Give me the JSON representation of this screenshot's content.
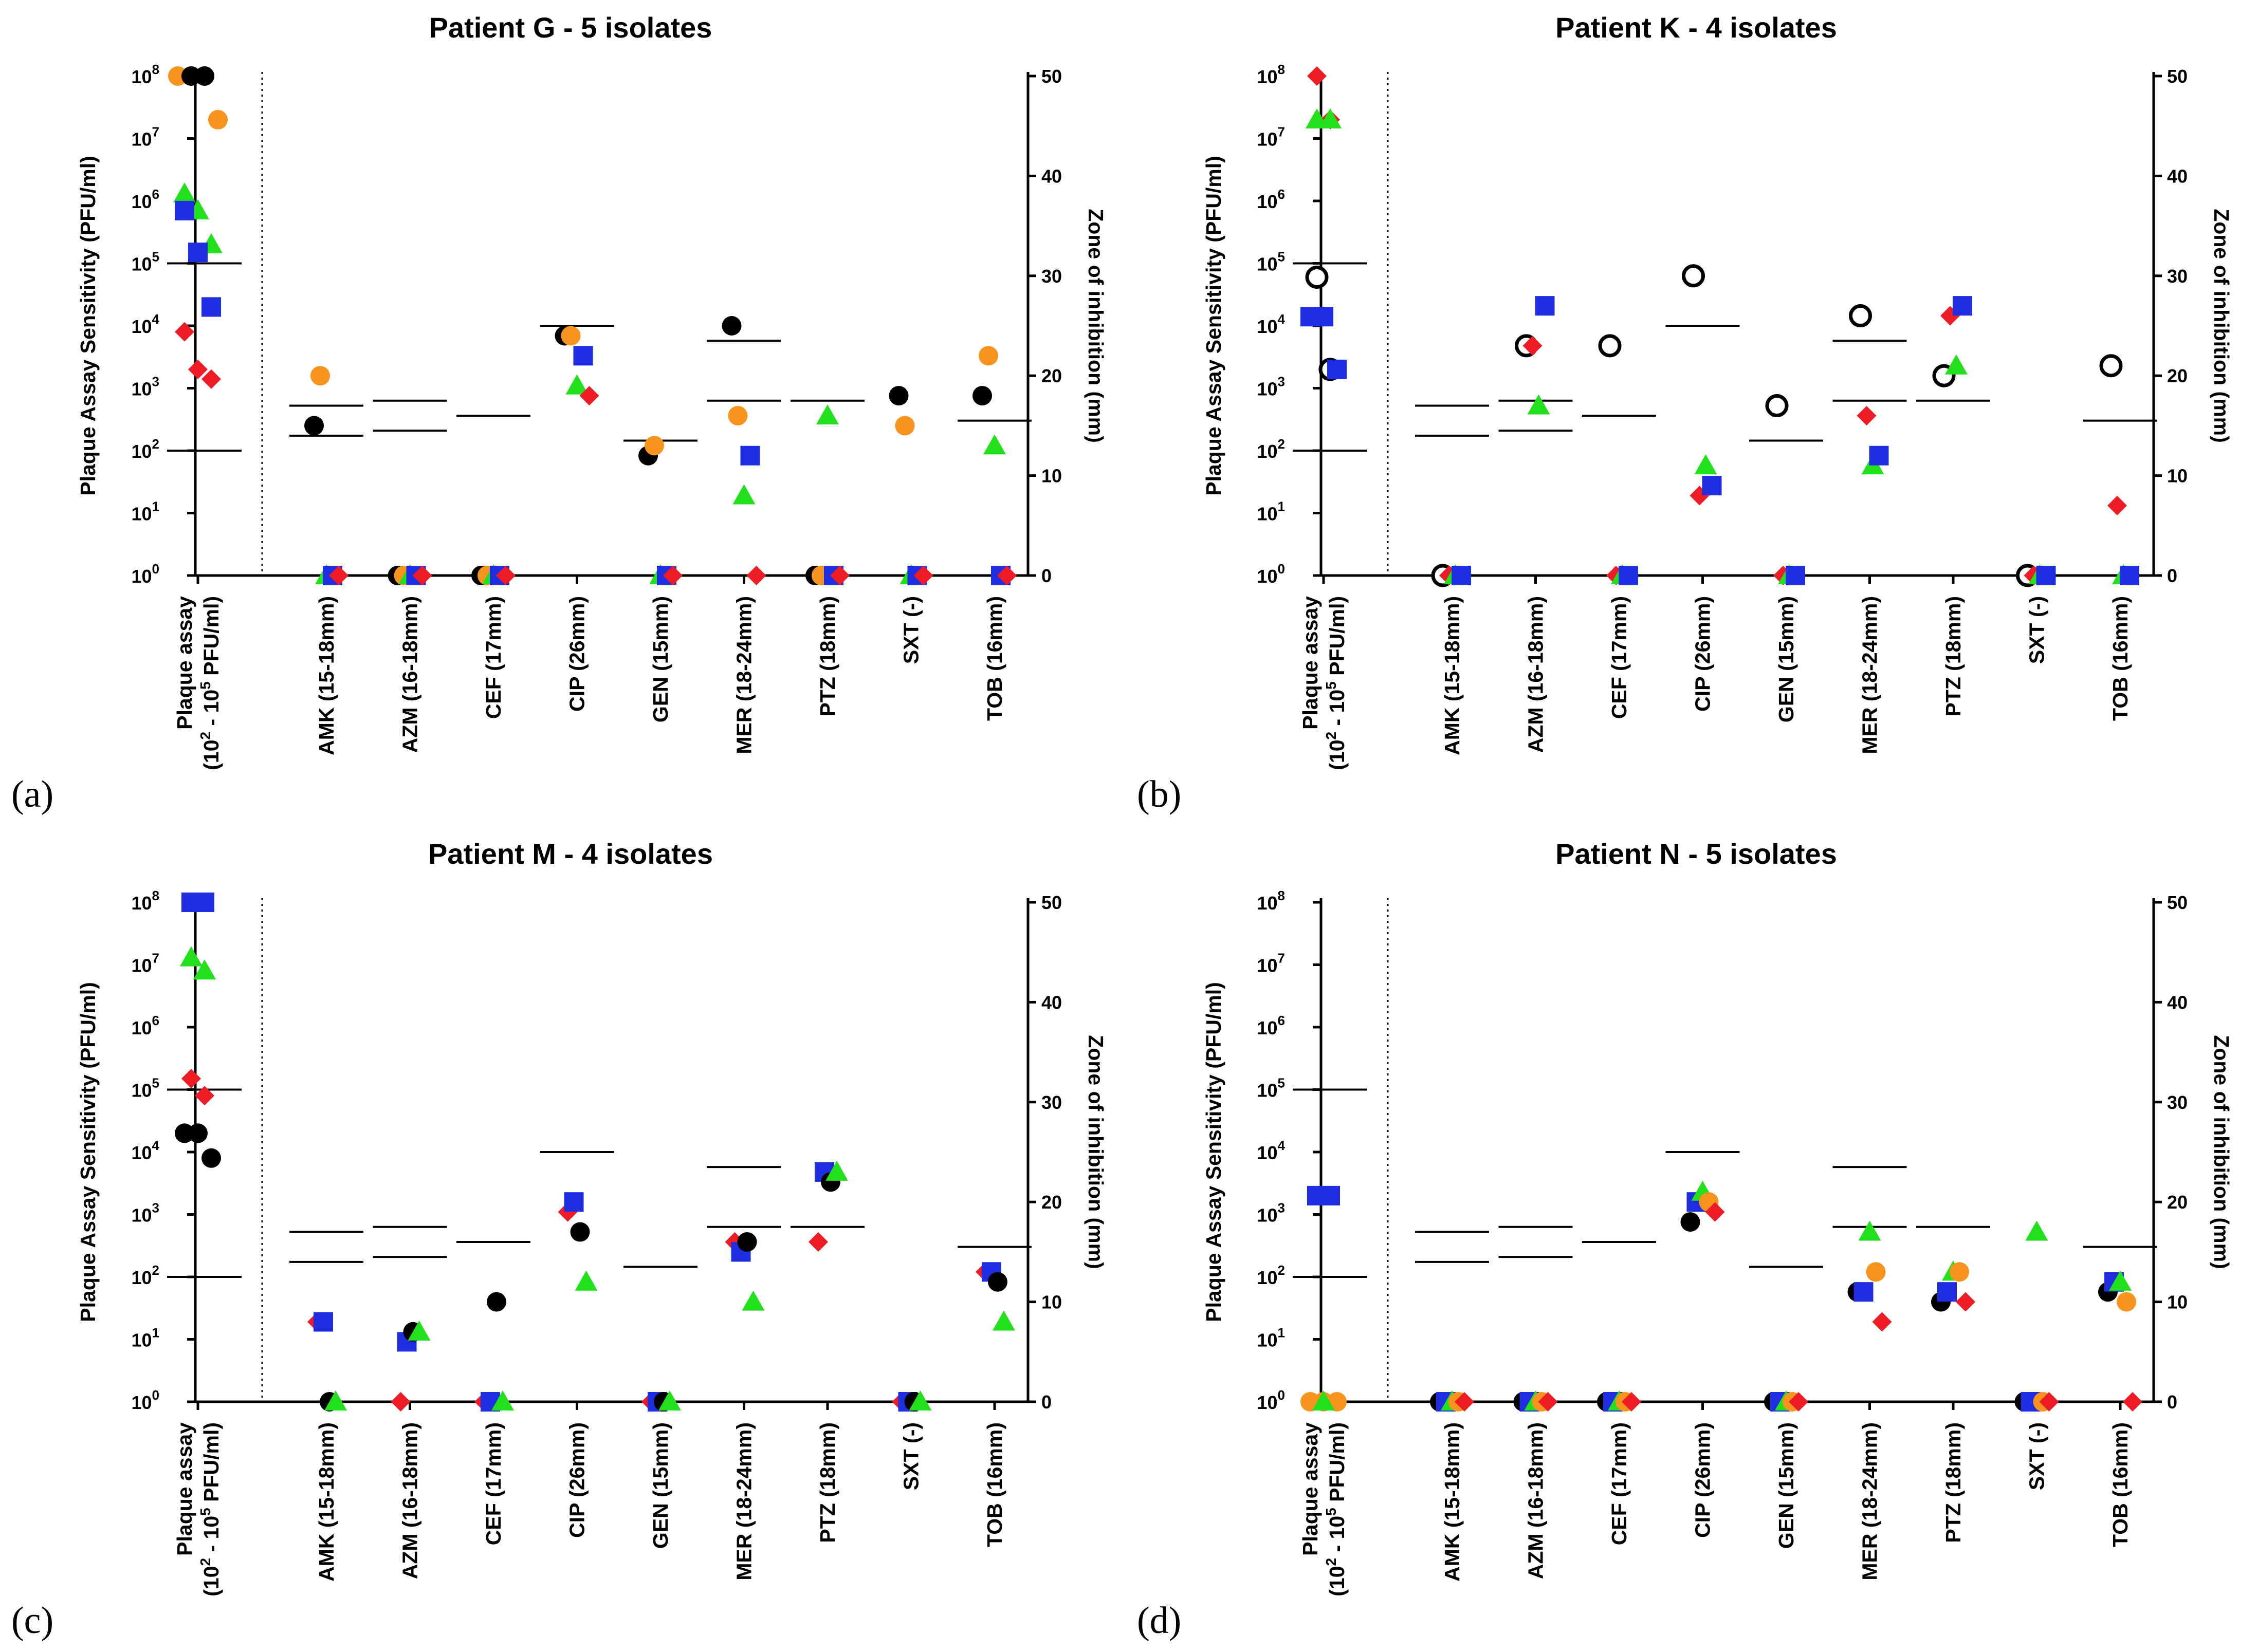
{
  "chart_data": [
    {
      "id": "a",
      "type": "scatter",
      "title": "Patient G - 5 isolates",
      "panel_letter": "(a)",
      "ylabel": "Plaque Assay Sensitivity (PFU/ml)",
      "y2label": "Zone of inhibition (mm)",
      "ylim": [
        1,
        100000000
      ],
      "y_scale": "log10",
      "y2lim": [
        0,
        50
      ],
      "y_ticks": [
        "10",
        "10",
        "10",
        "10",
        "10",
        "10",
        "10",
        "10",
        "10"
      ],
      "y_tick_exps": [
        "0",
        "1",
        "2",
        "3",
        "4",
        "5",
        "6",
        "7",
        "8"
      ],
      "y2_ticks": [
        "0",
        "10",
        "20",
        "30",
        "40",
        "50"
      ],
      "plaque_label": "Plaque assay",
      "plaque_range_label": "(10",
      "plaque_range_exp1": "2",
      "plaque_range_mid": " - 10",
      "plaque_range_exp2": "5",
      "plaque_range_unit": " PFU/ml)",
      "categories": [
        "AMK (15-18mm)",
        "AZM (16-18mm)",
        "CEF (17mm)",
        "CIP (26mm)",
        "GEN (15mm)",
        "MER (18-24mm)",
        "PTZ (18mm)",
        "SXT (-)",
        "TOB (16mm)"
      ],
      "plaque_lines": [
        100,
        100000
      ],
      "breakpoints_mm": [
        [
          14,
          17
        ],
        [
          14.5,
          17.5
        ],
        [
          16
        ],
        [
          25
        ],
        [
          13.5
        ],
        [
          17.5,
          23.5
        ],
        [
          17.5
        ],
        [],
        [
          15.5
        ]
      ],
      "plaque_series": [
        {
          "name": "orange circle",
          "values": [
            100000000,
            100000000,
            100000000,
            20000000
          ]
        },
        {
          "name": "black circle",
          "values": [
            100000000,
            100000000
          ]
        },
        {
          "name": "green triangle",
          "values": [
            1300000,
            700000,
            200000
          ]
        },
        {
          "name": "blue square",
          "values": [
            700000,
            150000,
            20000
          ]
        },
        {
          "name": "red diamond",
          "values": [
            8000,
            2000,
            1400
          ]
        }
      ],
      "zone_series": [
        {
          "name": "black circle",
          "values": [
            15,
            0,
            0,
            24,
            12,
            25,
            0,
            18,
            18
          ]
        },
        {
          "name": "orange circle",
          "values": [
            20,
            0,
            0,
            24,
            13,
            16,
            0,
            15,
            22
          ]
        },
        {
          "name": "green triangle",
          "values": [
            0,
            0,
            0,
            19,
            0,
            8,
            16,
            0,
            13
          ]
        },
        {
          "name": "blue square",
          "values": [
            0,
            0,
            0,
            22,
            0,
            12,
            0,
            0,
            0
          ]
        },
        {
          "name": "red diamond",
          "values": [
            0,
            0,
            0,
            18,
            0,
            0,
            0,
            0,
            0
          ]
        }
      ]
    },
    {
      "id": "b",
      "type": "scatter",
      "title": "Patient K - 4 isolates",
      "panel_letter": "(b)",
      "ylabel": "Plaque Assay Sensitivity (PFU/ml)",
      "y2label": "Zone of inhibition (mm)",
      "ylim": [
        1,
        100000000
      ],
      "y_scale": "log10",
      "y2lim": [
        0,
        50
      ],
      "y_ticks": [
        "10",
        "10",
        "10",
        "10",
        "10",
        "10",
        "10",
        "10",
        "10"
      ],
      "y_tick_exps": [
        "0",
        "1",
        "2",
        "3",
        "4",
        "5",
        "6",
        "7",
        "8"
      ],
      "y2_ticks": [
        "0",
        "10",
        "20",
        "30",
        "40",
        "50"
      ],
      "plaque_label": "Plaque assay",
      "plaque_range_label": "(10",
      "plaque_range_exp1": "2",
      "plaque_range_mid": " - 10",
      "plaque_range_exp2": "5",
      "plaque_range_unit": " PFU/ml)",
      "categories": [
        "AMK (15-18mm)",
        "AZM (16-18mm)",
        "CEF (17mm)",
        "CIP (26mm)",
        "GEN (15mm)",
        "MER (18-24mm)",
        "PTZ (18mm)",
        "SXT (-)",
        "TOB (16mm)"
      ],
      "plaque_lines": [
        100,
        100000
      ],
      "breakpoints_mm": [
        [
          14,
          17
        ],
        [
          14.5,
          17.5
        ],
        [
          16
        ],
        [
          25
        ],
        [
          13.5
        ],
        [
          17.5,
          23.5
        ],
        [
          17.5
        ],
        [],
        [
          15.5
        ]
      ],
      "plaque_series": [
        {
          "name": "red diamond",
          "values": [
            100000000,
            20000000
          ]
        },
        {
          "name": "green triangle",
          "values": [
            20000000,
            20000000
          ]
        },
        {
          "name": "open circle",
          "values": [
            60000,
            2000
          ]
        },
        {
          "name": "blue square",
          "values": [
            14000,
            14000,
            2000
          ]
        }
      ],
      "zone_series": [
        {
          "name": "open circle",
          "values": [
            0,
            23,
            23,
            30,
            17,
            26,
            20,
            0,
            21
          ]
        },
        {
          "name": "red diamond",
          "values": [
            0,
            23,
            0,
            8,
            0,
            16,
            26,
            0,
            7
          ]
        },
        {
          "name": "green triangle",
          "values": [
            0,
            17,
            0,
            11,
            0,
            11,
            21,
            0,
            0
          ]
        },
        {
          "name": "blue square",
          "values": [
            0,
            27,
            0,
            9,
            0,
            12,
            27,
            0,
            0
          ]
        }
      ]
    },
    {
      "id": "c",
      "type": "scatter",
      "title": "Patient M - 4 isolates",
      "panel_letter": "(c)",
      "ylabel": "Plaque Assay Sensitivity (PFU/ml)",
      "y2label": "Zone of inhibition (mm)",
      "ylim": [
        1,
        100000000
      ],
      "y_scale": "log10",
      "y2lim": [
        0,
        50
      ],
      "y_ticks": [
        "10",
        "10",
        "10",
        "10",
        "10",
        "10",
        "10",
        "10",
        "10"
      ],
      "y_tick_exps": [
        "0",
        "1",
        "2",
        "3",
        "4",
        "5",
        "6",
        "7",
        "8"
      ],
      "y2_ticks": [
        "0",
        "10",
        "20",
        "30",
        "40",
        "50"
      ],
      "plaque_label": "Plaque assay",
      "plaque_range_label": "(10",
      "plaque_range_exp1": "2",
      "plaque_range_mid": " - 10",
      "plaque_range_exp2": "5",
      "plaque_range_unit": " PFU/ml)",
      "categories": [
        "AMK (15-18mm)",
        "AZM (16-18mm)",
        "CEF (17mm)",
        "CIP (26mm)",
        "GEN (15mm)",
        "MER (18-24mm)",
        "PTZ (18mm)",
        "SXT (-)",
        "TOB (16mm)"
      ],
      "plaque_lines": [
        100,
        100000
      ],
      "breakpoints_mm": [
        [
          14,
          17
        ],
        [
          14.5,
          17.5
        ],
        [
          16
        ],
        [
          25
        ],
        [
          13.5
        ],
        [
          17.5,
          23.5
        ],
        [
          17.5
        ],
        [],
        [
          15.5
        ]
      ],
      "plaque_series": [
        {
          "name": "blue square",
          "values": [
            100000000,
            100000000
          ]
        },
        {
          "name": "green triangle",
          "values": [
            13000000,
            8000000
          ]
        },
        {
          "name": "red diamond",
          "values": [
            150000,
            80000
          ]
        },
        {
          "name": "black circle",
          "values": [
            20000,
            20000,
            8000
          ]
        }
      ],
      "zone_series": [
        {
          "name": "red diamond",
          "values": [
            8,
            0,
            0,
            19,
            0,
            16,
            16,
            0,
            13
          ]
        },
        {
          "name": "blue square",
          "values": [
            8,
            6,
            0,
            20,
            0,
            15,
            23,
            0,
            13
          ]
        },
        {
          "name": "black circle",
          "values": [
            0,
            7,
            10,
            17,
            0,
            16,
            22,
            0,
            12
          ]
        },
        {
          "name": "green triangle",
          "values": [
            0,
            7,
            0,
            12,
            0,
            10,
            23,
            0,
            8
          ]
        }
      ]
    },
    {
      "id": "d",
      "type": "scatter",
      "title": "Patient N - 5 isolates",
      "panel_letter": "(d)",
      "ylabel": "Plaque Assay Sensitivity (PFU/ml)",
      "y2label": "Zone of inhibition (mm)",
      "ylim": [
        1,
        100000000
      ],
      "y_scale": "log10",
      "y2lim": [
        0,
        50
      ],
      "y_ticks": [
        "10",
        "10",
        "10",
        "10",
        "10",
        "10",
        "10",
        "10",
        "10"
      ],
      "y_tick_exps": [
        "0",
        "1",
        "2",
        "3",
        "4",
        "5",
        "6",
        "7",
        "8"
      ],
      "y2_ticks": [
        "0",
        "10",
        "20",
        "30",
        "40",
        "50"
      ],
      "plaque_label": "Plaque assay",
      "plaque_range_label": "(10",
      "plaque_range_exp1": "2",
      "plaque_range_mid": " - 10",
      "plaque_range_exp2": "5",
      "plaque_range_unit": " PFU/ml)",
      "categories": [
        "AMK (15-18mm)",
        "AZM (16-18mm)",
        "CEF (17mm)",
        "CIP (26mm)",
        "GEN (15mm)",
        "MER (18-24mm)",
        "PTZ (18mm)",
        "SXT (-)",
        "TOB (16mm)"
      ],
      "plaque_lines": [
        100,
        100000
      ],
      "breakpoints_mm": [
        [
          14,
          17
        ],
        [
          14.5,
          17.5
        ],
        [
          16
        ],
        [
          25
        ],
        [
          13.5
        ],
        [
          17.5,
          23.5
        ],
        [
          17.5
        ],
        [],
        [
          15.5
        ]
      ],
      "plaque_series": [
        {
          "name": "blue square",
          "values": [
            2000,
            2000
          ]
        },
        {
          "name": "orange circle",
          "values": [
            1,
            1,
            1
          ]
        },
        {
          "name": "green triangle",
          "values": [
            1
          ]
        }
      ],
      "zone_series": [
        {
          "name": "black circle",
          "values": [
            0,
            0,
            0,
            18,
            0,
            11,
            10,
            0,
            11
          ]
        },
        {
          "name": "blue square",
          "values": [
            0,
            0,
            0,
            20,
            0,
            11,
            11,
            0,
            12
          ]
        },
        {
          "name": "green triangle",
          "values": [
            0,
            0,
            0,
            21,
            0,
            17,
            13,
            17,
            12
          ]
        },
        {
          "name": "orange circle",
          "values": [
            0,
            0,
            0,
            20,
            0,
            13,
            13,
            0,
            10
          ]
        },
        {
          "name": "red diamond",
          "values": [
            0,
            0,
            0,
            19,
            0,
            8,
            10,
            0,
            0
          ]
        }
      ]
    }
  ],
  "marker_colors": {
    "black circle": "#000000",
    "orange circle": "#f7941d",
    "green triangle": "#22e01c",
    "blue square": "#1f2ee0",
    "red diamond": "#ee1c25",
    "open circle": "#000000"
  }
}
